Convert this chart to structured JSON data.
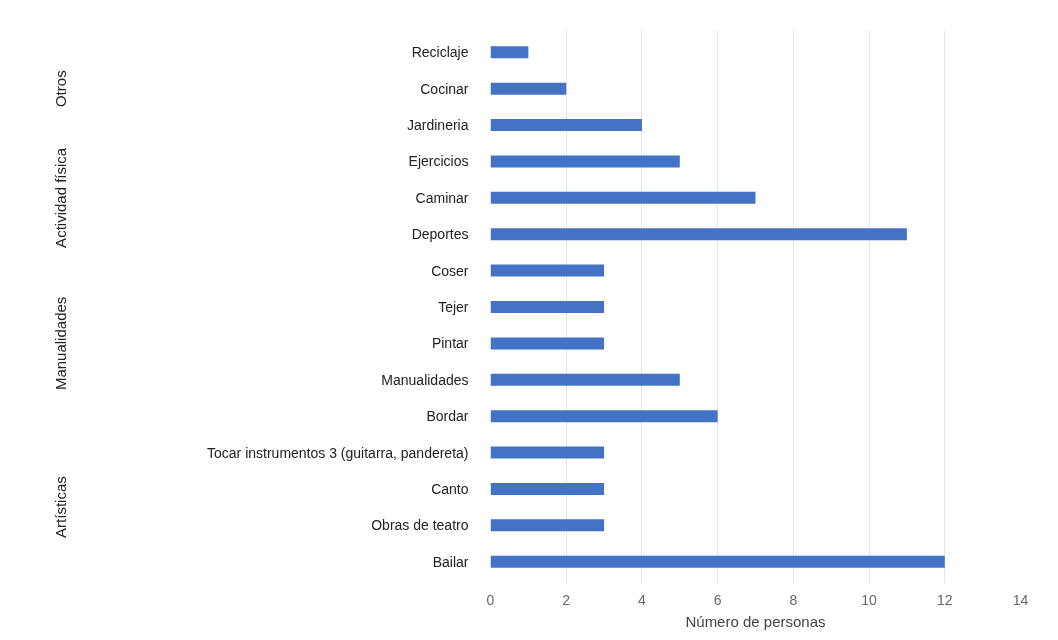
{
  "chart_data": {
    "type": "bar",
    "orientation": "horizontal",
    "categories": [
      "Reciclaje",
      "Cocinar",
      "Jardineria",
      "Ejercicios",
      "Caminar",
      "Deportes",
      "Coser",
      "Tejer",
      "Pintar",
      "Manualidades",
      "Bordar",
      "Tocar instrumentos 3 (guitarra, pandereta)",
      "Canto",
      "Obras de teatro",
      "Bailar"
    ],
    "values": [
      1,
      2,
      4,
      5,
      7,
      11,
      3,
      3,
      3,
      5,
      6,
      3,
      3,
      3,
      12
    ],
    "color": "#4472c4",
    "xlim": [
      0,
      14
    ],
    "xticks": [
      0,
      2,
      4,
      6,
      8,
      10,
      12,
      14
    ],
    "xlabel": "Número de personas",
    "grid": "x",
    "annotations": [
      "Otros",
      "Actividad física",
      "Manualidades",
      "Artísticas"
    ]
  }
}
